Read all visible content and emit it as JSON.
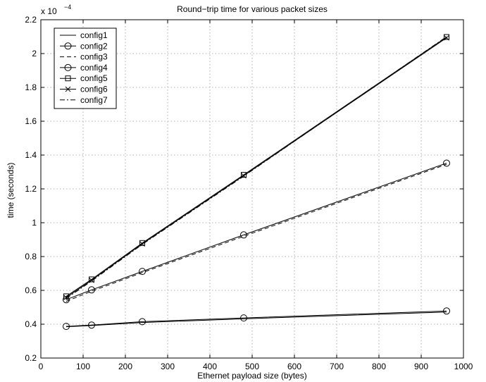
{
  "chart_data": {
    "type": "line",
    "title": "Round−trip time for various packet sizes",
    "xlabel": "Ethernet payload size (bytes)",
    "ylabel": "time (seconds)",
    "multiplier_label": "x 10",
    "multiplier_exp": "−4",
    "xlim": [
      0,
      1000
    ],
    "ylim": [
      0.2,
      2.2
    ],
    "xticks": [
      "0",
      "100",
      "200",
      "300",
      "400",
      "500",
      "600",
      "700",
      "800",
      "900",
      "1000"
    ],
    "yticks": [
      "0.2",
      "0.4",
      "0.6",
      "0.8",
      "1",
      "1.2",
      "1.4",
      "1.6",
      "1.8",
      "2",
      "2.2"
    ],
    "grid": true,
    "legend_position": "top-left",
    "x": [
      60,
      120,
      240,
      480,
      960
    ],
    "series": [
      {
        "name": "config1",
        "marker": "none",
        "dash": "solid",
        "values": [
          0.385,
          0.392,
          0.41,
          0.432,
          0.472
        ]
      },
      {
        "name": "config2",
        "marker": "circle",
        "dash": "solid",
        "values": [
          0.387,
          0.395,
          0.415,
          0.437,
          0.478
        ]
      },
      {
        "name": "config3",
        "marker": "none",
        "dash": "dashed",
        "values": [
          0.535,
          0.595,
          0.705,
          0.92,
          1.345
        ]
      },
      {
        "name": "config4",
        "marker": "circle",
        "dash": "solid",
        "values": [
          0.545,
          0.603,
          0.712,
          0.928,
          1.352
        ]
      },
      {
        "name": "config5",
        "marker": "square",
        "dash": "solid",
        "values": [
          0.565,
          0.665,
          0.88,
          1.283,
          2.098
        ]
      },
      {
        "name": "config6",
        "marker": "x",
        "dash": "solid",
        "values": [
          0.558,
          0.66,
          0.875,
          1.278,
          2.093
        ]
      },
      {
        "name": "config7",
        "marker": "none",
        "dash": "dashdot",
        "values": [
          0.552,
          0.655,
          0.872,
          1.275,
          2.1
        ]
      }
    ]
  }
}
